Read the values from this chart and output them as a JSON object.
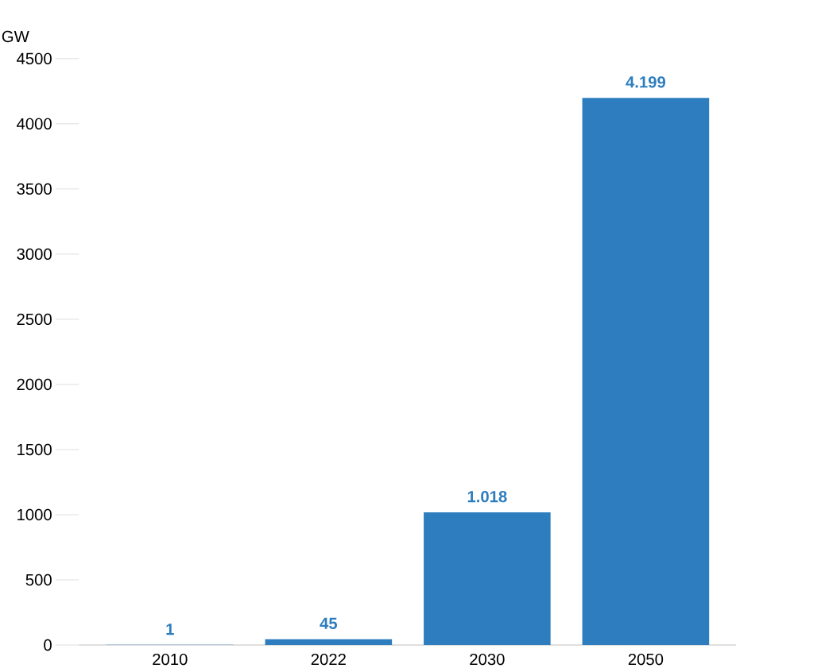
{
  "chart_data": {
    "type": "bar",
    "ylabel": "GW",
    "categories": [
      "2010",
      "2022",
      "2030",
      "2050"
    ],
    "values": [
      1,
      45,
      1018,
      4199
    ],
    "value_labels": [
      "1",
      "45",
      "1.018",
      "4.199"
    ],
    "color": "#2e7ebf",
    "ylim": [
      0,
      4500
    ],
    "yticks": [
      0,
      500,
      1000,
      1500,
      2000,
      2500,
      3000,
      3500,
      4000,
      4500
    ],
    "grid": false
  }
}
